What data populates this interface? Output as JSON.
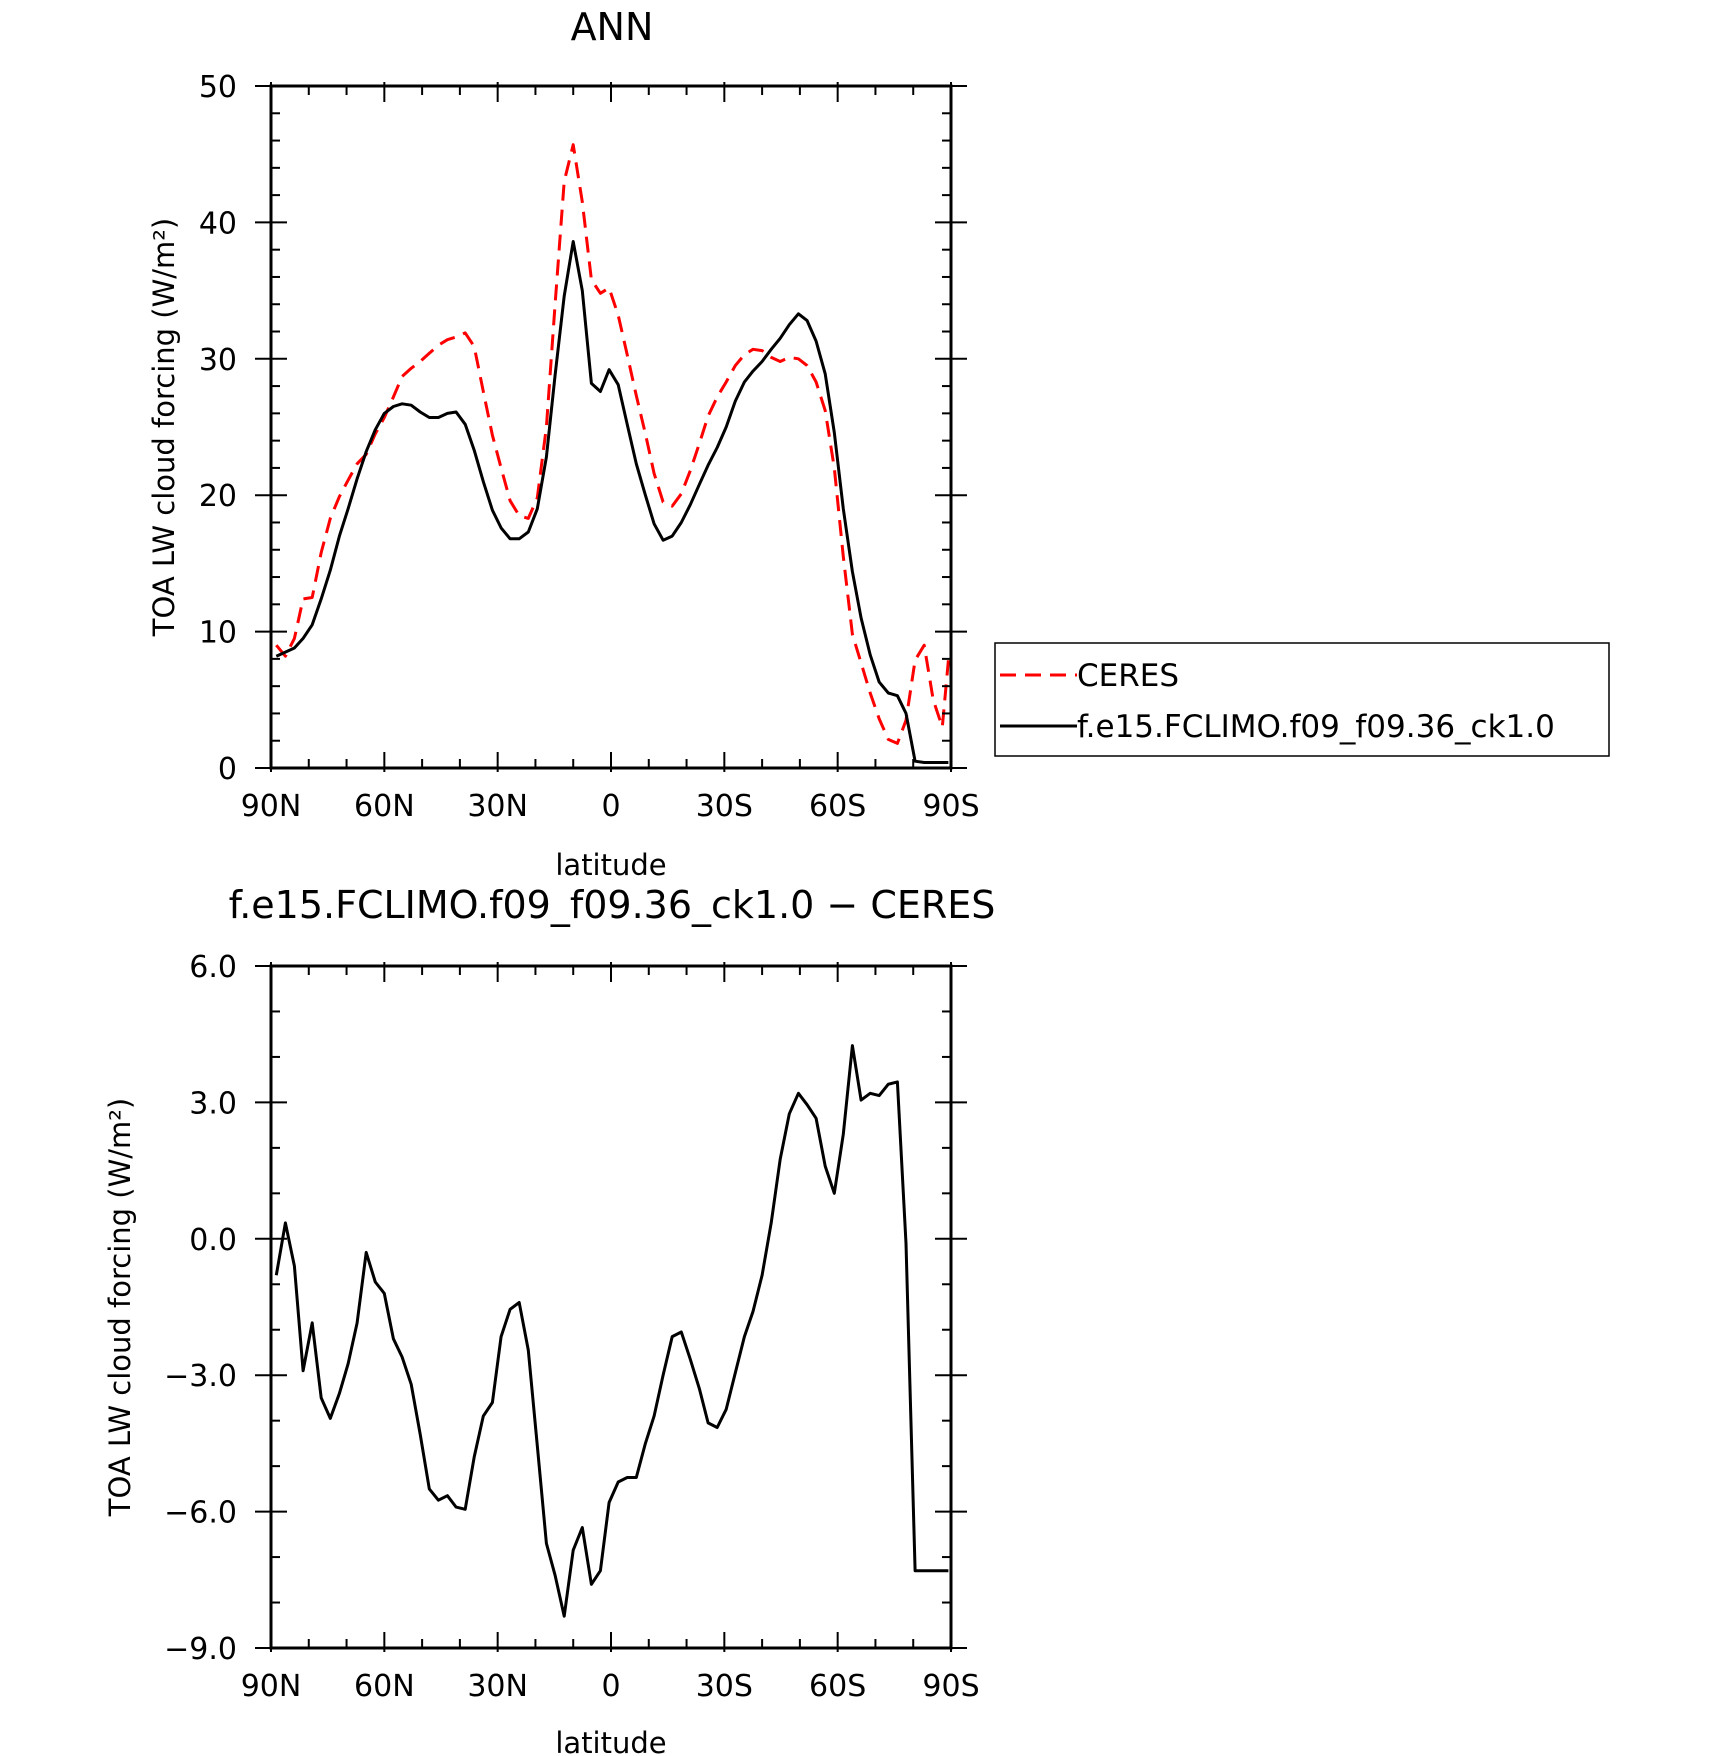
{
  "chart_data": [
    {
      "type": "line",
      "title": "ANN",
      "xlabel": "latitude",
      "ylabel": "TOA LW cloud forcing (W/m²)",
      "xlim": [
        90,
        -90
      ],
      "ylim": [
        0,
        50
      ],
      "x_ticks": [
        90,
        60,
        30,
        0,
        -30,
        -60,
        -90
      ],
      "x_tick_labels": [
        "90N",
        "60N",
        "30N",
        "0",
        "30S",
        "60S",
        "90S"
      ],
      "y_ticks": [
        0,
        10,
        20,
        30,
        40,
        50
      ],
      "y_tick_labels": [
        "0",
        "10",
        "20",
        "30",
        "40",
        "50"
      ],
      "grid": false,
      "legend_position": "outside right",
      "series": [
        {
          "name": "CERES",
          "style": "dashed",
          "color": "#ff0000",
          "x": [
            88.6,
            86.2,
            83.8,
            81.5,
            79.1,
            76.7,
            74.3,
            71.9,
            69.6,
            67.2,
            64.8,
            62.4,
            60.0,
            57.6,
            55.3,
            52.9,
            50.5,
            48.1,
            45.7,
            43.3,
            41.0,
            38.6,
            36.2,
            33.8,
            31.4,
            29.1,
            26.7,
            24.3,
            21.9,
            19.5,
            17.1,
            14.8,
            12.4,
            10.0,
            7.6,
            5.2,
            2.8,
            0.5,
            -1.9,
            -4.3,
            -6.7,
            -9.1,
            -11.4,
            -13.8,
            -16.2,
            -18.6,
            -21.0,
            -23.4,
            -25.7,
            -28.1,
            -30.5,
            -32.9,
            -35.3,
            -37.6,
            -40.0,
            -42.4,
            -44.8,
            -47.2,
            -49.6,
            -51.9,
            -54.3,
            -56.7,
            -59.1,
            -61.5,
            -63.9,
            -66.2,
            -68.6,
            -71.0,
            -73.4,
            -75.8,
            -78.1,
            -80.5,
            -82.9,
            -85.3,
            -87.7,
            -89.3
          ],
          "values": [
            9.0,
            8.2,
            9.5,
            12.4,
            12.5,
            15.8,
            18.3,
            19.9,
            21.1,
            22.3,
            23.0,
            24.5,
            25.7,
            27.2,
            28.7,
            29.3,
            29.8,
            30.4,
            31.0,
            31.4,
            31.6,
            31.9,
            30.9,
            27.6,
            24.4,
            22.0,
            19.6,
            18.5,
            18.3,
            19.8,
            25.0,
            34.0,
            43.0,
            45.7,
            41.5,
            35.8,
            34.8,
            35.2,
            33.2,
            30.3,
            27.3,
            24.5,
            21.6,
            19.5,
            19.2,
            20.1,
            21.8,
            23.8,
            25.8,
            27.2,
            28.3,
            29.5,
            30.3,
            30.7,
            30.6,
            30.1,
            29.8,
            30.1,
            30.0,
            29.5,
            28.3,
            26.2,
            22.0,
            15.5,
            9.8,
            7.7,
            5.5,
            3.6,
            2.1,
            1.8,
            3.5,
            7.9,
            9.0,
            5.0,
            3.0,
            7.9
          ]
        },
        {
          "name": "f.e15.FCLIMO.f09_f09.36_ck1.0",
          "style": "solid",
          "color": "#000000",
          "x": [
            88.6,
            86.2,
            83.8,
            81.5,
            79.1,
            76.7,
            74.3,
            71.9,
            69.6,
            67.2,
            64.8,
            62.4,
            60.0,
            57.6,
            55.3,
            52.9,
            50.5,
            48.1,
            45.7,
            43.3,
            41.0,
            38.6,
            36.2,
            33.8,
            31.4,
            29.1,
            26.7,
            24.3,
            21.9,
            19.5,
            17.1,
            14.8,
            12.4,
            10.0,
            7.6,
            5.2,
            2.8,
            0.5,
            -1.9,
            -4.3,
            -6.7,
            -9.1,
            -11.4,
            -13.8,
            -16.2,
            -18.6,
            -21.0,
            -23.4,
            -25.7,
            -28.1,
            -30.5,
            -32.9,
            -35.3,
            -37.6,
            -40.0,
            -42.4,
            -44.8,
            -47.2,
            -49.6,
            -51.9,
            -54.3,
            -56.7,
            -59.1,
            -61.5,
            -63.9,
            -66.2,
            -68.6,
            -71.0,
            -73.4,
            -75.8,
            -78.1,
            -80.5,
            -82.9,
            -85.3,
            -87.7,
            -89.3
          ],
          "values": [
            8.2,
            8.5,
            8.8,
            9.5,
            10.5,
            12.4,
            14.5,
            17.0,
            19.0,
            21.2,
            23.2,
            24.8,
            26.0,
            26.5,
            26.7,
            26.6,
            26.1,
            25.7,
            25.7,
            26.0,
            26.1,
            25.2,
            23.3,
            21.0,
            18.9,
            17.6,
            16.8,
            16.8,
            17.3,
            19.0,
            22.8,
            28.8,
            34.6,
            38.6,
            35.0,
            28.2,
            27.6,
            29.2,
            28.1,
            25.2,
            22.3,
            20.0,
            17.9,
            16.7,
            17.0,
            18.0,
            19.3,
            20.8,
            22.2,
            23.5,
            25.0,
            26.9,
            28.3,
            29.1,
            29.8,
            30.7,
            31.5,
            32.5,
            33.3,
            32.8,
            31.3,
            28.9,
            24.6,
            19.0,
            14.4,
            11.0,
            8.3,
            6.3,
            5.5,
            5.3,
            4.0,
            0.5,
            0.4,
            0.4,
            0.4,
            0.4
          ]
        }
      ]
    },
    {
      "type": "line",
      "title": "f.e15.FCLIMO.f09_f09.36_ck1.0 − CERES",
      "xlabel": "latitude",
      "ylabel": "TOA LW cloud forcing (W/m²)",
      "xlim": [
        90,
        -90
      ],
      "ylim": [
        -9.0,
        6.0
      ],
      "x_ticks": [
        90,
        60,
        30,
        0,
        -30,
        -60,
        -90
      ],
      "x_tick_labels": [
        "90N",
        "60N",
        "30N",
        "0",
        "30S",
        "60S",
        "90S"
      ],
      "y_ticks": [
        -9.0,
        -6.0,
        -3.0,
        0.0,
        3.0,
        6.0
      ],
      "y_tick_labels": [
        "−9.0",
        "−6.0",
        "−3.0",
        "0.0",
        "3.0",
        "6.0"
      ],
      "grid": false,
      "series": [
        {
          "style": "solid",
          "color": "#000000",
          "x": [
            88.6,
            86.2,
            83.8,
            81.5,
            79.1,
            76.7,
            74.3,
            71.9,
            69.6,
            67.2,
            64.8,
            62.4,
            60.0,
            57.6,
            55.3,
            52.9,
            50.5,
            48.1,
            45.7,
            43.3,
            41.0,
            38.6,
            36.2,
            33.8,
            31.4,
            29.1,
            26.7,
            24.3,
            21.9,
            19.5,
            17.1,
            14.8,
            12.4,
            10.0,
            7.6,
            5.2,
            2.8,
            0.5,
            -1.9,
            -4.3,
            -6.7,
            -9.1,
            -11.4,
            -13.8,
            -16.2,
            -18.6,
            -21.0,
            -23.4,
            -25.7,
            -28.1,
            -30.5,
            -32.9,
            -35.3,
            -37.6,
            -40.0,
            -42.4,
            -44.8,
            -47.2,
            -49.6,
            -51.9,
            -54.3,
            -56.7,
            -59.1,
            -61.5,
            -63.9,
            -66.2,
            -68.6,
            -71.0,
            -73.4,
            -75.8,
            -78.1,
            -80.5,
            -82.9,
            -85.3,
            -87.7,
            -89.3
          ],
          "values": [
            -0.8,
            0.35,
            -0.6,
            -2.9,
            -1.85,
            -3.5,
            -3.95,
            -3.4,
            -2.75,
            -1.85,
            -0.3,
            -0.95,
            -1.2,
            -2.2,
            -2.6,
            -3.2,
            -4.3,
            -5.5,
            -5.75,
            -5.65,
            -5.9,
            -5.95,
            -4.8,
            -3.9,
            -3.6,
            -2.15,
            -1.55,
            -1.4,
            -2.45,
            -4.55,
            -6.7,
            -7.4,
            -8.3,
            -6.85,
            -6.35,
            -7.6,
            -7.3,
            -5.8,
            -5.35,
            -5.25,
            -5.25,
            -4.5,
            -3.9,
            -3.0,
            -2.15,
            -2.05,
            -2.65,
            -3.3,
            -4.05,
            -4.15,
            -3.75,
            -2.95,
            -2.15,
            -1.6,
            -0.8,
            0.35,
            1.75,
            2.75,
            3.2,
            2.95,
            2.65,
            1.6,
            1.0,
            2.3,
            4.25,
            3.05,
            3.2,
            3.15,
            3.4,
            3.45,
            -0.1,
            -7.3,
            -7.3,
            -7.3,
            -7.3,
            -7.3
          ]
        }
      ]
    }
  ]
}
